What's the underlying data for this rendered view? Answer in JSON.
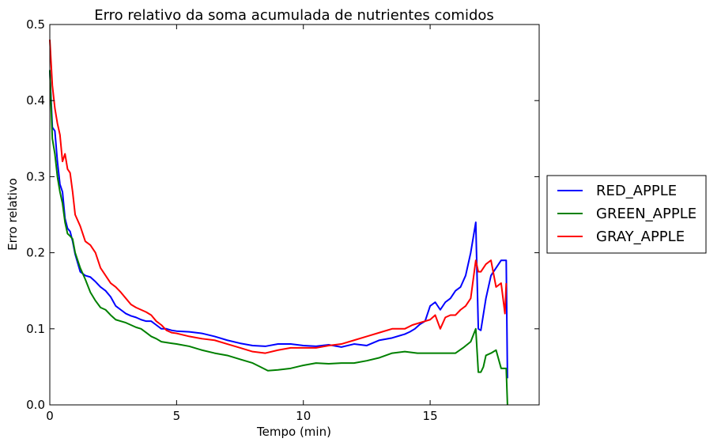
{
  "chart_data": {
    "type": "line",
    "title": "Erro relativo da soma acumulada de nutrientes comidos",
    "xlabel": "Tempo (min)",
    "ylabel": "Erro relativo",
    "xlim": [
      0,
      19.3
    ],
    "ylim": [
      0,
      0.5
    ],
    "xticks": [
      0,
      5,
      10,
      15
    ],
    "xtick_labels": [
      "0",
      "5",
      "10",
      "15"
    ],
    "yticks": [
      0.0,
      0.1,
      0.2,
      0.3,
      0.4,
      0.5
    ],
    "ytick_labels": [
      "0.0",
      "0.1",
      "0.2",
      "0.3",
      "0.4",
      "0.5"
    ],
    "grid": false,
    "legend_position": "right-outside",
    "series": [
      {
        "name": "RED_APPLE",
        "color": "#0000ff",
        "x": [
          0,
          0.1,
          0.2,
          0.3,
          0.4,
          0.5,
          0.6,
          0.7,
          0.8,
          0.9,
          1.0,
          1.2,
          1.4,
          1.6,
          1.8,
          2.0,
          2.2,
          2.4,
          2.6,
          2.8,
          3.0,
          3.2,
          3.4,
          3.6,
          3.8,
          4.0,
          4.2,
          4.4,
          4.6,
          4.8,
          5.0,
          5.5,
          6.0,
          6.5,
          7.0,
          7.5,
          8.0,
          8.5,
          9.0,
          9.5,
          10.0,
          10.5,
          11.0,
          11.5,
          12.0,
          12.5,
          13.0,
          13.5,
          14.0,
          14.2,
          14.4,
          14.6,
          14.8,
          15.0,
          15.2,
          15.4,
          15.6,
          15.8,
          16.0,
          16.2,
          16.4,
          16.6,
          16.7,
          16.8,
          16.9,
          17.0,
          17.2,
          17.4,
          17.6,
          17.8,
          18.0,
          18.05
        ],
        "y": [
          0.44,
          0.365,
          0.36,
          0.32,
          0.29,
          0.28,
          0.245,
          0.232,
          0.228,
          0.215,
          0.198,
          0.175,
          0.17,
          0.168,
          0.162,
          0.155,
          0.15,
          0.142,
          0.13,
          0.125,
          0.12,
          0.117,
          0.115,
          0.112,
          0.11,
          0.11,
          0.105,
          0.1,
          0.1,
          0.098,
          0.097,
          0.096,
          0.094,
          0.09,
          0.085,
          0.081,
          0.078,
          0.077,
          0.08,
          0.08,
          0.078,
          0.077,
          0.079,
          0.076,
          0.08,
          0.078,
          0.085,
          0.088,
          0.093,
          0.096,
          0.1,
          0.106,
          0.11,
          0.13,
          0.135,
          0.125,
          0.135,
          0.14,
          0.15,
          0.155,
          0.17,
          0.2,
          0.22,
          0.24,
          0.1,
          0.098,
          0.14,
          0.17,
          0.18,
          0.19,
          0.19,
          0.035
        ]
      },
      {
        "name": "GREEN_APPLE",
        "color": "#008000",
        "x": [
          0,
          0.1,
          0.2,
          0.3,
          0.4,
          0.5,
          0.6,
          0.7,
          0.8,
          0.9,
          1.0,
          1.2,
          1.4,
          1.6,
          1.8,
          2.0,
          2.2,
          2.4,
          2.6,
          2.8,
          3.0,
          3.2,
          3.4,
          3.6,
          3.8,
          4.0,
          4.2,
          4.4,
          4.6,
          4.8,
          5.0,
          5.5,
          6.0,
          6.5,
          7.0,
          7.5,
          8.0,
          8.3,
          8.6,
          9.0,
          9.5,
          10.0,
          10.5,
          11.0,
          11.5,
          12.0,
          12.5,
          13.0,
          13.5,
          14.0,
          14.5,
          15.0,
          15.5,
          16.0,
          16.3,
          16.6,
          16.8,
          16.9,
          17.0,
          17.1,
          17.2,
          17.4,
          17.6,
          17.8,
          18.0,
          18.05
        ],
        "y": [
          0.44,
          0.35,
          0.33,
          0.3,
          0.28,
          0.265,
          0.24,
          0.225,
          0.222,
          0.218,
          0.2,
          0.18,
          0.165,
          0.148,
          0.137,
          0.128,
          0.125,
          0.118,
          0.112,
          0.11,
          0.108,
          0.105,
          0.102,
          0.1,
          0.095,
          0.09,
          0.087,
          0.083,
          0.082,
          0.081,
          0.08,
          0.077,
          0.072,
          0.068,
          0.065,
          0.06,
          0.055,
          0.05,
          0.045,
          0.046,
          0.048,
          0.052,
          0.055,
          0.054,
          0.055,
          0.055,
          0.058,
          0.062,
          0.068,
          0.07,
          0.068,
          0.068,
          0.068,
          0.068,
          0.075,
          0.083,
          0.1,
          0.043,
          0.043,
          0.05,
          0.065,
          0.068,
          0.072,
          0.048,
          0.048,
          0.0
        ]
      },
      {
        "name": "GRAY_APPLE",
        "color": "#ff0000",
        "x": [
          0,
          0.1,
          0.2,
          0.3,
          0.4,
          0.5,
          0.6,
          0.7,
          0.8,
          0.9,
          1.0,
          1.2,
          1.4,
          1.6,
          1.8,
          2.0,
          2.2,
          2.4,
          2.6,
          2.8,
          3.0,
          3.2,
          3.4,
          3.6,
          3.8,
          4.0,
          4.2,
          4.4,
          4.6,
          4.8,
          5.0,
          5.5,
          6.0,
          6.5,
          7.0,
          7.5,
          8.0,
          8.5,
          9.0,
          9.5,
          10.0,
          10.5,
          11.0,
          11.5,
          12.0,
          12.5,
          13.0,
          13.5,
          14.0,
          14.3,
          14.6,
          15.0,
          15.2,
          15.4,
          15.6,
          15.8,
          16.0,
          16.2,
          16.4,
          16.6,
          16.8,
          16.9,
          17.0,
          17.2,
          17.4,
          17.6,
          17.8,
          17.95,
          18.0
        ],
        "y": [
          0.48,
          0.42,
          0.39,
          0.37,
          0.355,
          0.32,
          0.33,
          0.31,
          0.305,
          0.28,
          0.25,
          0.235,
          0.215,
          0.21,
          0.2,
          0.18,
          0.17,
          0.16,
          0.155,
          0.148,
          0.14,
          0.132,
          0.128,
          0.125,
          0.122,
          0.118,
          0.11,
          0.105,
          0.098,
          0.095,
          0.094,
          0.09,
          0.087,
          0.085,
          0.08,
          0.075,
          0.07,
          0.068,
          0.072,
          0.075,
          0.075,
          0.075,
          0.078,
          0.08,
          0.085,
          0.09,
          0.095,
          0.1,
          0.1,
          0.105,
          0.108,
          0.112,
          0.118,
          0.1,
          0.115,
          0.118,
          0.118,
          0.125,
          0.13,
          0.14,
          0.19,
          0.175,
          0.175,
          0.185,
          0.19,
          0.155,
          0.16,
          0.12,
          0.16
        ]
      }
    ]
  }
}
